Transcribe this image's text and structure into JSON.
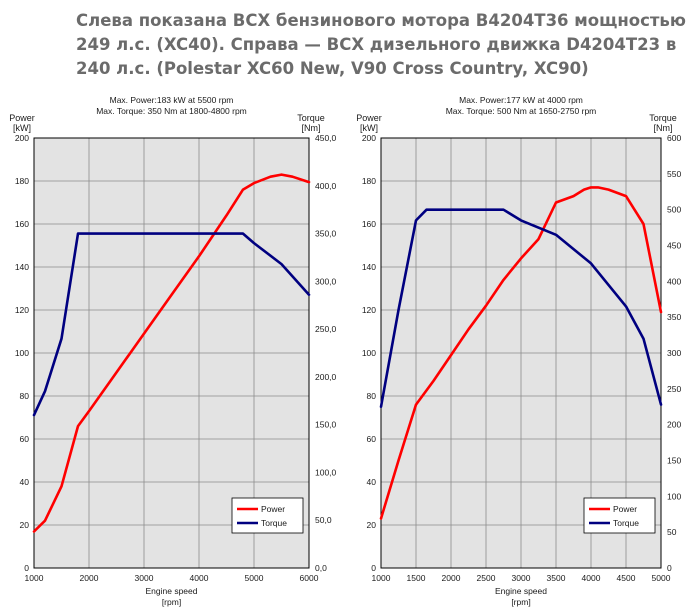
{
  "headline": {
    "lines": [
      "Слева показана ВСХ бензинового мотора B4204T36 мощностью",
      "249 л.с. (XC40). Справа — ВСХ дизельного движка D4204T23 в",
      "240 л.с. (Polestar XC60 New, V90 Cross Country, XC90)"
    ]
  },
  "colors": {
    "power": "#ff0000",
    "torque": "#000080",
    "plot_bg": "#e3e3e3",
    "grid": "#8c8c8c"
  },
  "chart_data": [
    {
      "type": "line",
      "title": "Max. Power:183 kW at 5500 rpm",
      "subtitle": "Max. Torque: 350 Nm at 1800-4800 rpm",
      "xlabel": "Engine speed",
      "xunit": "[rpm]",
      "ylabel": "Power",
      "yunit": "[kW]",
      "y2label": "Torque",
      "y2unit": "[Nm]",
      "xlim": [
        1000,
        6000
      ],
      "ylim": [
        0,
        200
      ],
      "y2lim": [
        0,
        450
      ],
      "xticks": [
        1000,
        2000,
        3000,
        4000,
        5000,
        6000
      ],
      "xtick_labels": [
        "1000",
        "2000",
        "3000",
        "4000",
        "5000",
        "6000"
      ],
      "yticks": [
        0,
        20,
        40,
        60,
        80,
        100,
        120,
        140,
        160,
        180,
        200
      ],
      "ytick_labels": [
        "0",
        "20",
        "40",
        "60",
        "80",
        "100",
        "120",
        "140",
        "160",
        "180",
        "200"
      ],
      "y2ticks": [
        0,
        50,
        100,
        150,
        200,
        250,
        300,
        350,
        400,
        450
      ],
      "y2tick_labels": [
        "0,0",
        "50,0",
        "100,0",
        "150,0",
        "200,0",
        "250,0",
        "300,0",
        "350,0",
        "400,0",
        "450,0"
      ],
      "grid": true,
      "legend_position": "bottom-right",
      "series": [
        {
          "name": "Power",
          "axis": "left",
          "x": [
            1000,
            1200,
            1500,
            1800,
            2000,
            2500,
            3000,
            3500,
            4000,
            4500,
            4800,
            5000,
            5300,
            5500,
            5700,
            6000
          ],
          "y": [
            17,
            22,
            38,
            66,
            73,
            91,
            109,
            127,
            145,
            164,
            176,
            179,
            182,
            183,
            182,
            179.5
          ]
        },
        {
          "name": "Torque",
          "axis": "right",
          "x": [
            1000,
            1200,
            1500,
            1800,
            2000,
            3000,
            4000,
            4800,
            5000,
            5500,
            6000
          ],
          "y": [
            160,
            185,
            240,
            350,
            350,
            350,
            350,
            350,
            340,
            318,
            286
          ]
        }
      ]
    },
    {
      "type": "line",
      "title": "Max. Power:177 kW at 4000 rpm",
      "subtitle": "Max. Torque: 500 Nm at 1650-2750 rpm",
      "xlabel": "Engine speed",
      "xunit": "[rpm]",
      "ylabel": "Power",
      "yunit": "[kW]",
      "y2label": "Torque",
      "y2unit": "[Nm]",
      "xlim": [
        1000,
        5000
      ],
      "ylim": [
        0,
        200
      ],
      "y2lim": [
        0,
        600
      ],
      "xticks": [
        1000,
        1500,
        2000,
        2500,
        3000,
        3500,
        4000,
        4500,
        5000
      ],
      "xtick_labels": [
        "1000",
        "1500",
        "2000",
        "2500",
        "3000",
        "3500",
        "4000",
        "4500",
        "5000"
      ],
      "yticks": [
        0,
        20,
        40,
        60,
        80,
        100,
        120,
        140,
        160,
        180,
        200
      ],
      "ytick_labels": [
        "0",
        "20",
        "40",
        "60",
        "80",
        "100",
        "120",
        "140",
        "160",
        "180",
        "200"
      ],
      "y2ticks": [
        0,
        50,
        100,
        150,
        200,
        250,
        300,
        350,
        400,
        450,
        500,
        550,
        600
      ],
      "y2tick_labels": [
        "0",
        "50",
        "100",
        "150",
        "200",
        "250",
        "300",
        "350",
        "400",
        "450",
        "500",
        "550",
        "600"
      ],
      "grid": true,
      "legend_position": "bottom-right",
      "series": [
        {
          "name": "Power",
          "axis": "left",
          "x": [
            1000,
            1250,
            1500,
            1750,
            2000,
            2250,
            2500,
            2750,
            3000,
            3250,
            3500,
            3750,
            3900,
            4000,
            4100,
            4250,
            4500,
            4750,
            5000
          ],
          "y": [
            23,
            50,
            76,
            87,
            99,
            111,
            122,
            134,
            144,
            153,
            170,
            173,
            176,
            177,
            177,
            176,
            173,
            160,
            119
          ]
        },
        {
          "name": "Torque",
          "axis": "right",
          "x": [
            1000,
            1250,
            1500,
            1650,
            2000,
            2500,
            2750,
            3000,
            3500,
            4000,
            4250,
            4500,
            4750,
            5000
          ],
          "y": [
            225,
            360,
            485,
            500,
            500,
            500,
            500,
            485,
            465,
            425,
            395,
            365,
            320,
            228
          ]
        }
      ]
    }
  ]
}
